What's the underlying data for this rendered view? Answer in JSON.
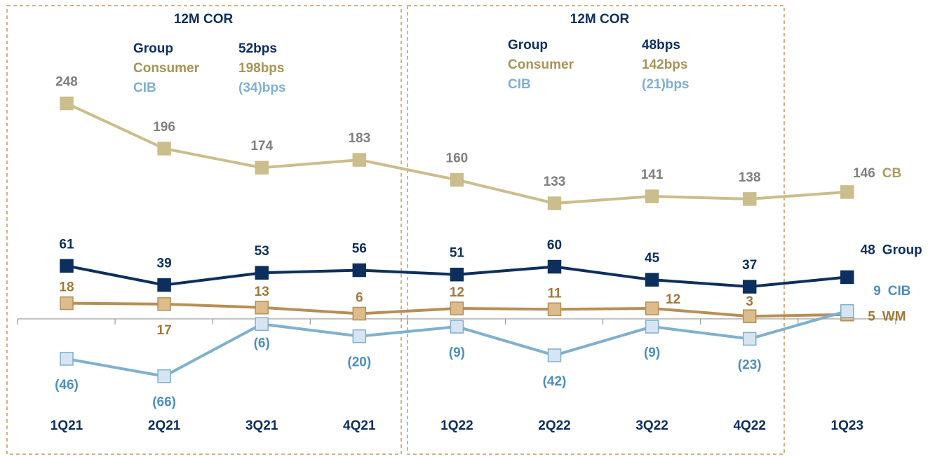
{
  "chart_data": {
    "type": "line",
    "categories": [
      "1Q21",
      "2Q21",
      "3Q21",
      "4Q21",
      "1Q22",
      "2Q22",
      "3Q22",
      "4Q22",
      "1Q23"
    ],
    "ylim": [
      -159,
      367
    ],
    "series": [
      {
        "name": "CB",
        "color": "#cbbd8c",
        "values": [
          248,
          196,
          174,
          183,
          160,
          133,
          141,
          138,
          146
        ]
      },
      {
        "name": "Group",
        "color": "#0d2f5e",
        "values": [
          61,
          39,
          53,
          56,
          51,
          60,
          45,
          37,
          48
        ]
      },
      {
        "name": "WM",
        "color": "#b88e54",
        "values": [
          18,
          17,
          13,
          6,
          12,
          11,
          12,
          3,
          5
        ]
      },
      {
        "name": "CIB",
        "color": "#7fb0d0",
        "values": [
          -46,
          -66,
          -6,
          -20,
          -9,
          -42,
          -9,
          -23,
          9
        ],
        "value_labels": [
          "(46)",
          "(66)",
          "(6)",
          "(20)",
          "(9)",
          "(42)",
          "(9)",
          "(23)",
          "9"
        ]
      }
    ],
    "annotations": [
      {
        "title": "12M COR",
        "rows": [
          [
            "Group",
            "52bps"
          ],
          [
            "Consumer",
            "198bps"
          ],
          [
            "CIB",
            "(34)bps"
          ]
        ]
      },
      {
        "title": "12M COR",
        "rows": [
          [
            "Group",
            "48bps"
          ],
          [
            "Consumer",
            "142bps"
          ],
          [
            "CIB",
            "(21)bps"
          ]
        ]
      }
    ]
  }
}
